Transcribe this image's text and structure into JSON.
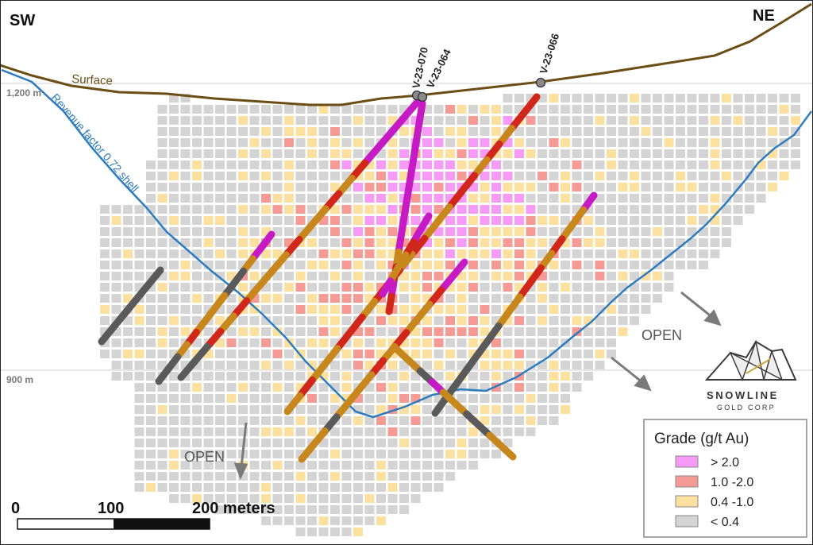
{
  "corners": {
    "left": "SW",
    "right": "NE"
  },
  "elevations": {
    "upper": "1,200 m",
    "lower": "900 m"
  },
  "surface_label": "Surface",
  "shell_label": "Revenue factor 0.72 shell",
  "drill_holes": [
    "V-23-070",
    "V-23-064",
    "V-23-066"
  ],
  "open_labels": [
    "OPEN",
    "OPEN"
  ],
  "logo": {
    "name": "SNOWLINE",
    "sub": "GOLD CORP"
  },
  "scale_bar": {
    "t0": "0",
    "t1": "100",
    "t2": "200 meters"
  },
  "legend": {
    "title": "Grade (g/t Au)",
    "items": [
      {
        "label": "> 2.0",
        "color": "#f59af5"
      },
      {
        "label": "1.0 -2.0",
        "color": "#f59a94"
      },
      {
        "label": "0.4 -1.0",
        "color": "#fce0a0"
      },
      {
        "label": "< 0.4",
        "color": "#d4d4d4"
      }
    ]
  },
  "colors": {
    "surface": "#6b4e16",
    "shell": "#2e7bbf",
    "elevation_line": "#cccccc",
    "hole_high": "#c61bc4",
    "hole_mid": "#d1261a",
    "hole_low": "#c8871c",
    "hole_waste": "#5a5a5a",
    "arrow": "#7a7a7a"
  }
}
